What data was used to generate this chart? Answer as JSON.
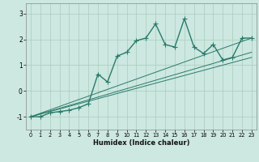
{
  "title": "",
  "xlabel": "Humidex (Indice chaleur)",
  "ylabel": "",
  "xlim": [
    -0.5,
    23.5
  ],
  "ylim": [
    -1.5,
    3.4
  ],
  "yticks": [
    -1,
    0,
    1,
    2,
    3
  ],
  "xticks": [
    0,
    1,
    2,
    3,
    4,
    5,
    6,
    7,
    8,
    9,
    10,
    11,
    12,
    13,
    14,
    15,
    16,
    17,
    18,
    19,
    20,
    21,
    22,
    23
  ],
  "bg_color": "#cce8e0",
  "grid_color": "#aaccbb",
  "line_color": "#2a7a6a",
  "line_width": 1.0,
  "marker": "+",
  "marker_size": 4,
  "series1_x": [
    0,
    1,
    2,
    3,
    4,
    5,
    6,
    7,
    8,
    9,
    10,
    11,
    12,
    13,
    14,
    15,
    16,
    17,
    18,
    19,
    20,
    21,
    22,
    23
  ],
  "series1_y": [
    -1.0,
    -1.0,
    -0.85,
    -0.8,
    -0.75,
    -0.65,
    -0.5,
    0.65,
    0.35,
    1.35,
    1.5,
    1.95,
    2.05,
    2.6,
    1.8,
    1.7,
    2.8,
    1.7,
    1.45,
    1.8,
    1.2,
    1.3,
    2.05,
    2.05
  ],
  "line2_x": [
    0,
    23
  ],
  "line2_y": [
    -1.0,
    2.05
  ],
  "line3_x": [
    0,
    23
  ],
  "line3_y": [
    -1.0,
    1.5
  ],
  "line4_x": [
    0,
    23
  ],
  "line4_y": [
    -1.0,
    1.3
  ]
}
